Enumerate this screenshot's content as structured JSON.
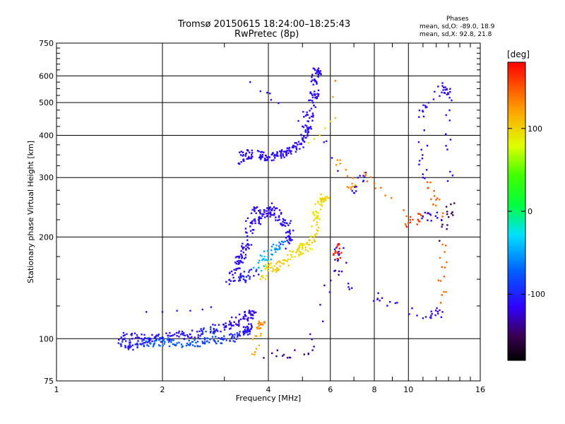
{
  "header": {
    "title_line1": "Tromsø 20150615 18:24:00–18:25:43",
    "title_line2": "RwPretec (8p)"
  },
  "stats": {
    "heading": "Phases",
    "o_line": "mean, sd,O: -89.0, 18.9",
    "x_line": "mean, sd,X:  92.8, 21.8"
  },
  "colorbar": {
    "label": "[deg]",
    "ticks": [
      {
        "value": 100,
        "label": "100"
      },
      {
        "value": 0,
        "label": "0"
      },
      {
        "value": -100,
        "label": "-100"
      }
    ],
    "range": [
      -180,
      180
    ],
    "colormap": "rainbow (black-purple-blue-cyan-green-yellow-red)"
  },
  "chart_data": {
    "type": "scatter",
    "title": "Tromsø 20150615 18:24:00–18:25:43",
    "subtitle": "RwPretec (8p)",
    "xlabel": "Frequency [MHz]",
    "ylabel": "Stationary phase Virtual Height [km]",
    "x_scale": "log",
    "y_scale": "log",
    "xlim": [
      1,
      16
    ],
    "ylim": [
      75,
      750
    ],
    "x_ticks": [
      1,
      2,
      4,
      6,
      8,
      10,
      16
    ],
    "x_tick_labels": [
      "1",
      "2",
      "4",
      "6",
      "8",
      "10",
      "16"
    ],
    "y_ticks": [
      75,
      100,
      200,
      300,
      400,
      500,
      600,
      750
    ],
    "y_tick_labels": [
      "75",
      "100",
      "200",
      "300",
      "400",
      "500",
      "600",
      "750"
    ],
    "grid": true,
    "color_by": "phase [deg]",
    "series": [
      {
        "name": "",
        "points": [
          [
            1.5,
            97,
            -100
          ],
          [
            1.6,
            95,
            -105
          ],
          [
            1.7,
            96,
            -98
          ],
          [
            1.8,
            98,
            -70
          ],
          [
            1.9,
            97,
            -72
          ],
          [
            2.0,
            98,
            -75
          ],
          [
            2.2,
            97,
            -78
          ],
          [
            2.4,
            97,
            -80
          ],
          [
            2.6,
            98,
            -84
          ],
          [
            2.8,
            99,
            -90
          ],
          [
            3.0,
            100,
            -95
          ],
          [
            3.2,
            101,
            -100
          ],
          [
            3.4,
            104,
            -105
          ],
          [
            3.5,
            108,
            -110
          ]
        ]
      },
      {
        "name": "",
        "points": [
          [
            1.55,
            102,
            -110
          ],
          [
            1.7,
            101,
            -112
          ],
          [
            1.85,
            100,
            -108
          ],
          [
            2.0,
            101,
            -110
          ],
          [
            2.2,
            102,
            -108
          ],
          [
            2.4,
            103,
            -110
          ],
          [
            2.6,
            105,
            -90
          ],
          [
            2.8,
            107,
            -110
          ],
          [
            3.0,
            108,
            -112
          ],
          [
            3.2,
            112,
            -115
          ],
          [
            3.4,
            116,
            -118
          ],
          [
            3.6,
            118,
            -115
          ]
        ]
      },
      {
        "name": "",
        "points": [
          [
            1.8,
            120,
            -110
          ],
          [
            2.0,
            120,
            -110
          ],
          [
            2.2,
            121,
            -108
          ],
          [
            2.4,
            121,
            -105
          ],
          [
            2.6,
            122,
            -110
          ],
          [
            2.75,
            124,
            -112
          ]
        ]
      },
      {
        "name": "",
        "points": [
          [
            3.1,
            145,
            -110
          ],
          [
            3.2,
            160,
            -112
          ],
          [
            3.3,
            170,
            -110
          ],
          [
            3.4,
            180,
            -115
          ],
          [
            3.5,
            190,
            -108
          ],
          [
            3.55,
            215,
            -112
          ],
          [
            3.65,
            240,
            -108
          ],
          [
            3.75,
            225,
            -110
          ],
          [
            3.9,
            240,
            -115
          ],
          [
            4.0,
            235,
            -110
          ],
          [
            4.15,
            245,
            -112
          ],
          [
            4.3,
            225,
            -108
          ],
          [
            4.5,
            220,
            -110
          ],
          [
            4.6,
            200,
            -112
          ],
          [
            4.4,
            190,
            -60
          ],
          [
            4.2,
            185,
            -50
          ],
          [
            3.9,
            175,
            -40
          ],
          [
            3.7,
            160,
            -100
          ],
          [
            3.4,
            150,
            -105
          ]
        ]
      },
      {
        "name": "",
        "points": [
          [
            3.8,
            150,
            95
          ],
          [
            4.0,
            165,
            100
          ],
          [
            4.2,
            160,
            105
          ],
          [
            4.5,
            170,
            95
          ],
          [
            4.8,
            180,
            100
          ],
          [
            5.0,
            185,
            90
          ],
          [
            5.2,
            190,
            100
          ],
          [
            5.4,
            200,
            98
          ],
          [
            5.5,
            230,
            95
          ],
          [
            5.6,
            250,
            90
          ],
          [
            5.8,
            260,
            100
          ]
        ]
      },
      {
        "name": "",
        "points": [
          [
            3.3,
            330,
            -110
          ],
          [
            3.4,
            350,
            -115
          ],
          [
            3.6,
            355,
            -112
          ],
          [
            3.8,
            350,
            -108
          ],
          [
            4.0,
            345,
            -112
          ],
          [
            4.2,
            348,
            -110
          ],
          [
            4.4,
            352,
            -115
          ],
          [
            4.6,
            360,
            -110
          ],
          [
            4.8,
            370,
            -112
          ],
          [
            5.0,
            390,
            -108
          ],
          [
            5.1,
            410,
            -110
          ],
          [
            5.2,
            440,
            -112
          ],
          [
            5.3,
            480,
            -115
          ],
          [
            5.4,
            530,
            -110
          ],
          [
            5.45,
            580,
            -112
          ],
          [
            5.5,
            620,
            -110
          ]
        ]
      },
      {
        "name": "",
        "points": [
          [
            5.2,
            380,
            95
          ],
          [
            5.4,
            390,
            100
          ],
          [
            5.6,
            400,
            105
          ],
          [
            5.8,
            420,
            95
          ],
          [
            6.0,
            440,
            100
          ],
          [
            6.2,
            450,
            110
          ],
          [
            6.1,
            520,
            130
          ],
          [
            6.2,
            580,
            140
          ]
        ]
      },
      {
        "name": "",
        "points": [
          [
            3.55,
            575,
            -110
          ],
          [
            6.4,
            330,
            130
          ],
          [
            7.0,
            270,
            -110
          ],
          [
            7.5,
            310,
            140
          ],
          [
            10.0,
            220,
            160
          ],
          [
            11.0,
            230,
            -120
          ],
          [
            12.5,
            230,
            145
          ],
          [
            11.0,
            300,
            -120
          ],
          [
            11.0,
            470,
            -110
          ],
          [
            12.5,
            560,
            -120
          ],
          [
            13.0,
            530,
            -115
          ],
          [
            13.2,
            250,
            -150
          ],
          [
            12.5,
            190,
            145
          ],
          [
            12.5,
            120,
            -120
          ],
          [
            11.0,
            115,
            -115
          ],
          [
            6.8,
            140,
            -115
          ],
          [
            6.3,
            190,
            170
          ],
          [
            6.3,
            170,
            -130
          ],
          [
            5.2,
            90,
            -140
          ],
          [
            3.6,
            90,
            120
          ],
          [
            3.8,
            110,
            130
          ]
        ]
      }
    ]
  }
}
